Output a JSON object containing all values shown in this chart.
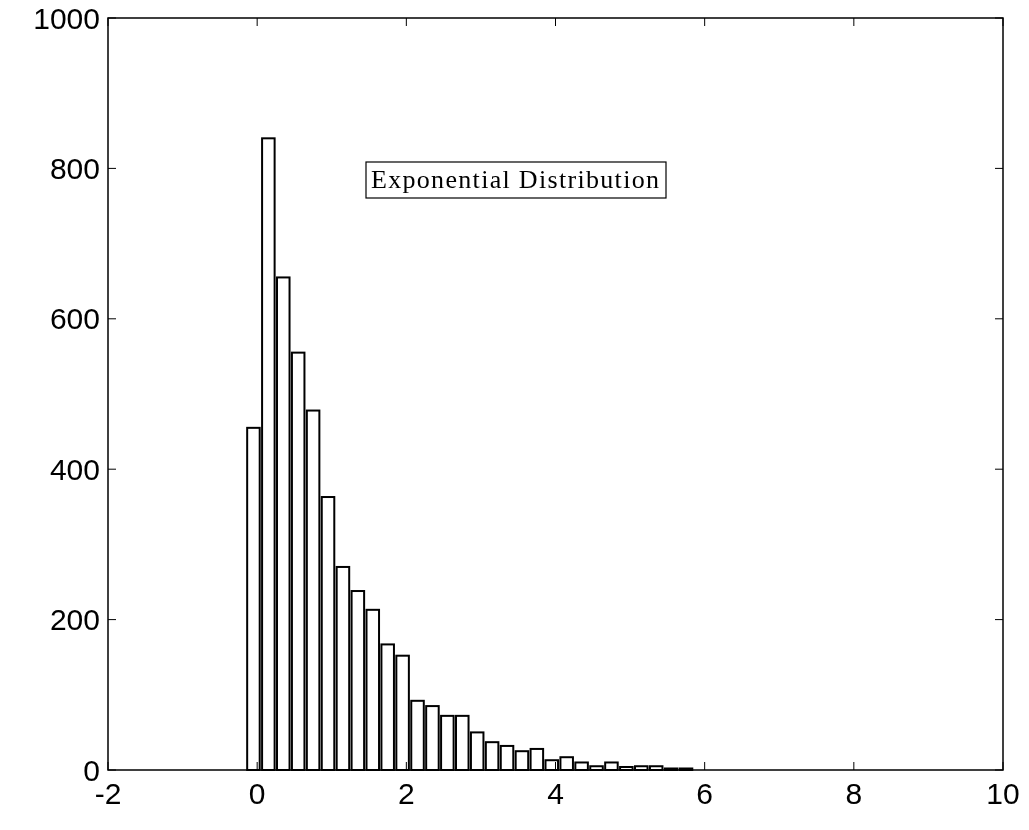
{
  "chart_data": {
    "type": "histogram",
    "bins": [
      -0.15,
      0.05,
      0.25,
      0.45,
      0.65,
      0.85,
      1.05,
      1.25,
      1.45,
      1.65,
      1.85,
      2.05,
      2.25,
      2.45,
      2.65,
      2.85,
      3.05,
      3.25,
      3.45,
      3.65,
      3.85,
      4.05,
      4.25,
      4.45,
      4.65,
      4.85,
      5.05,
      5.25,
      5.45,
      5.65,
      5.85
    ],
    "values": [
      455,
      840,
      655,
      555,
      478,
      363,
      270,
      238,
      213,
      167,
      152,
      92,
      85,
      72,
      72,
      50,
      37,
      32,
      25,
      28,
      13,
      17,
      10,
      5,
      10,
      4,
      5,
      5,
      2,
      2
    ],
    "color": "#ffffff",
    "xlim": [
      -2,
      10
    ],
    "xticks": [
      -2,
      0,
      2,
      4,
      6,
      8,
      10
    ],
    "ylim": [
      0,
      1000
    ],
    "yticks": [
      0,
      200,
      400,
      600,
      800,
      1000
    ],
    "annotations": [
      "Exponential Distribution"
    ]
  }
}
